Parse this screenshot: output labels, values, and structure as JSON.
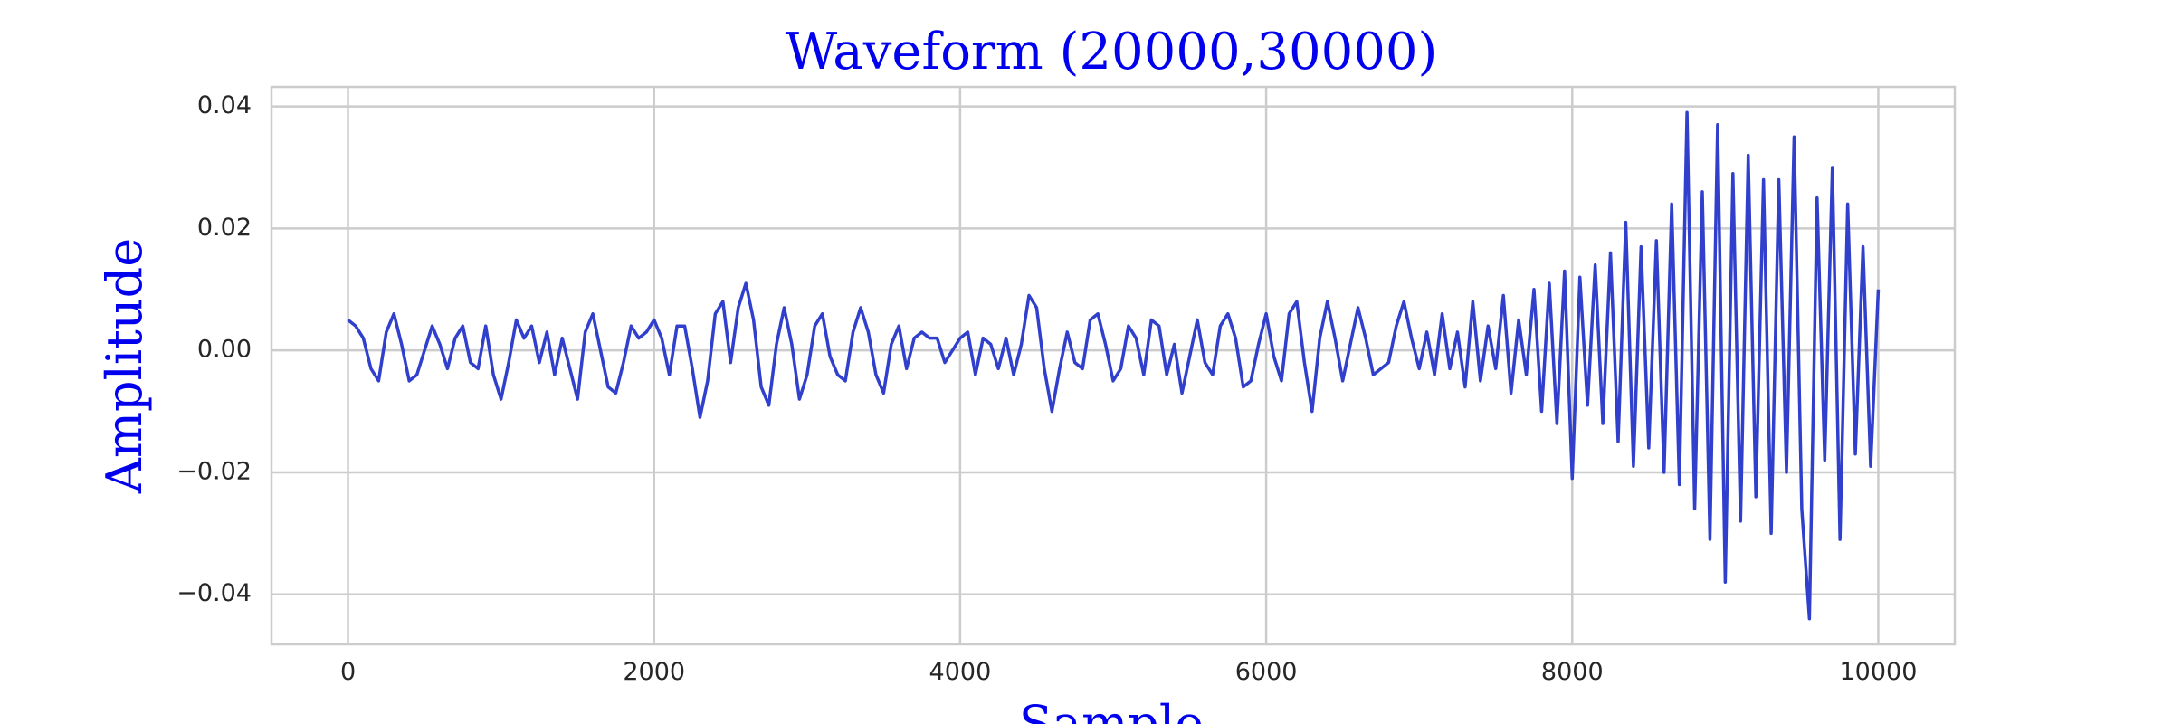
{
  "chart_data": {
    "type": "line",
    "title": "Waveform (20000,30000)",
    "x_label": "Sample",
    "y_label": "Amplitude",
    "x": [
      0,
      50,
      100,
      150,
      200,
      250,
      300,
      350,
      400,
      450,
      500,
      550,
      600,
      650,
      700,
      750,
      800,
      850,
      900,
      950,
      1000,
      1050,
      1100,
      1150,
      1200,
      1250,
      1300,
      1350,
      1400,
      1450,
      1500,
      1550,
      1600,
      1650,
      1700,
      1750,
      1800,
      1850,
      1900,
      1950,
      2000,
      2050,
      2100,
      2150,
      2200,
      2250,
      2300,
      2350,
      2400,
      2450,
      2500,
      2550,
      2600,
      2650,
      2700,
      2750,
      2800,
      2850,
      2900,
      2950,
      3000,
      3050,
      3100,
      3150,
      3200,
      3250,
      3300,
      3350,
      3400,
      3450,
      3500,
      3550,
      3600,
      3650,
      3700,
      3750,
      3800,
      3850,
      3900,
      3950,
      4000,
      4050,
      4100,
      4150,
      4200,
      4250,
      4300,
      4350,
      4400,
      4450,
      4500,
      4550,
      4600,
      4650,
      4700,
      4750,
      4800,
      4850,
      4900,
      4950,
      5000,
      5050,
      5100,
      5150,
      5200,
      5250,
      5300,
      5350,
      5400,
      5450,
      5500,
      5550,
      5600,
      5650,
      5700,
      5750,
      5800,
      5850,
      5900,
      5950,
      6000,
      6050,
      6100,
      6150,
      6200,
      6250,
      6300,
      6350,
      6400,
      6450,
      6500,
      6550,
      6600,
      6650,
      6700,
      6750,
      6800,
      6850,
      6900,
      6950,
      7000,
      7050,
      7100,
      7150,
      7200,
      7250,
      7300,
      7350,
      7400,
      7450,
      7500,
      7550,
      7600,
      7650,
      7700,
      7750,
      7800,
      7850,
      7900,
      7950,
      8000,
      8050,
      8100,
      8150,
      8200,
      8250,
      8300,
      8350,
      8400,
      8450,
      8500,
      8550,
      8600,
      8650,
      8700,
      8750,
      8800,
      8850,
      8900,
      8950,
      9000,
      9050,
      9100,
      9150,
      9200,
      9250,
      9300,
      9350,
      9400,
      9450,
      9500,
      9550,
      9600,
      9650,
      9700,
      9750,
      9800,
      9850,
      9900,
      9950,
      10000
    ],
    "series": [
      {
        "color": "#3040cc",
        "values": [
          0.005,
          0.004,
          0.002,
          -0.003,
          -0.005,
          0.003,
          0.006,
          0.001,
          -0.005,
          -0.004,
          0.0,
          0.004,
          0.001,
          -0.003,
          0.002,
          0.004,
          -0.002,
          -0.003,
          0.004,
          -0.004,
          -0.008,
          -0.002,
          0.005,
          0.002,
          0.004,
          -0.002,
          0.003,
          -0.004,
          0.002,
          -0.003,
          -0.008,
          0.003,
          0.006,
          0.0,
          -0.006,
          -0.007,
          -0.002,
          0.004,
          0.002,
          0.003,
          0.005,
          0.002,
          -0.004,
          0.004,
          0.004,
          -0.003,
          -0.011,
          -0.005,
          0.006,
          0.008,
          -0.002,
          0.007,
          0.011,
          0.005,
          -0.006,
          -0.009,
          0.001,
          0.007,
          0.001,
          -0.008,
          -0.004,
          0.004,
          0.006,
          -0.001,
          -0.004,
          -0.005,
          0.003,
          0.007,
          0.003,
          -0.004,
          -0.007,
          0.001,
          0.004,
          -0.003,
          0.002,
          0.003,
          0.002,
          0.002,
          -0.002,
          0.0,
          0.002,
          0.003,
          -0.004,
          0.002,
          0.001,
          -0.003,
          0.002,
          -0.004,
          0.001,
          0.009,
          0.007,
          -0.003,
          -0.01,
          -0.003,
          0.003,
          -0.002,
          -0.003,
          0.005,
          0.006,
          0.001,
          -0.005,
          -0.003,
          0.004,
          0.002,
          -0.004,
          0.005,
          0.004,
          -0.004,
          0.001,
          -0.007,
          -0.001,
          0.005,
          -0.002,
          -0.004,
          0.004,
          0.006,
          0.002,
          -0.006,
          -0.005,
          0.001,
          0.006,
          -0.001,
          -0.005,
          0.006,
          0.008,
          -0.002,
          -0.01,
          0.002,
          0.008,
          0.002,
          -0.005,
          0.001,
          0.007,
          0.002,
          -0.004,
          -0.003,
          -0.002,
          0.004,
          0.008,
          0.002,
          -0.003,
          0.003,
          -0.004,
          0.006,
          -0.003,
          0.003,
          -0.006,
          0.008,
          -0.005,
          0.004,
          -0.003,
          0.009,
          -0.007,
          0.005,
          -0.004,
          0.01,
          -0.01,
          0.011,
          -0.012,
          0.013,
          -0.021,
          0.012,
          -0.009,
          0.014,
          -0.012,
          0.016,
          -0.015,
          0.021,
          -0.019,
          0.017,
          -0.016,
          0.018,
          -0.02,
          0.024,
          -0.022,
          0.039,
          -0.026,
          0.026,
          -0.031,
          0.037,
          -0.038,
          0.029,
          -0.028,
          0.032,
          -0.024,
          0.028,
          -0.03,
          0.028,
          -0.02,
          0.035,
          -0.026,
          -0.044,
          0.025,
          -0.018,
          0.03,
          -0.031,
          0.024,
          -0.017,
          0.017,
          -0.019,
          0.01
        ]
      }
    ],
    "xlim": [
      -500,
      10500
    ],
    "ylim": [
      -0.0482,
      0.0432
    ],
    "xticks": [
      0,
      2000,
      4000,
      6000,
      8000,
      10000
    ],
    "yticks": [
      {
        "value": -0.04,
        "label": "−0.04"
      },
      {
        "value": -0.02,
        "label": "−0.02"
      },
      {
        "value": 0,
        "label": "0.00"
      },
      0.02,
      0.04
    ],
    "grid": true
  }
}
